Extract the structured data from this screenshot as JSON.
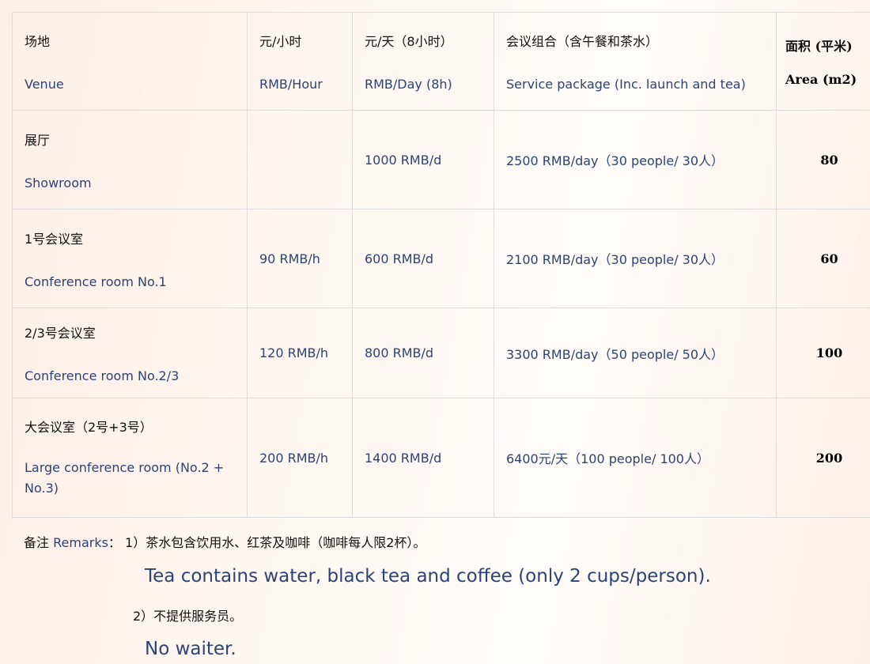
{
  "header": {
    "venue": {
      "zh": "场地",
      "en": "Venue"
    },
    "hour": {
      "zh": "元/小时",
      "en": "RMB/Hour"
    },
    "day": {
      "zh": "元/天（8小时）",
      "en": "RMB/Day (8h)"
    },
    "package": {
      "zh": "会议组合（含午餐和茶水）",
      "en": "Service package (Inc. launch and tea)"
    },
    "area": {
      "zh": "面积 (平米)",
      "en": "Area (m2)"
    }
  },
  "rows": [
    {
      "zh": "展厅",
      "en": "Showroom",
      "hour": "",
      "day": "1000 RMB/d",
      "package": "2500 RMB/day（30 people/ 30人）",
      "area": "80"
    },
    {
      "zh": "1号会议室",
      "en": "Conference room No.1",
      "hour": "90 RMB/h",
      "day": "600 RMB/d",
      "package": "2100 RMB/day（30 people/ 30人）",
      "area": "60"
    },
    {
      "zh": "2/3号会议室",
      "en": "Conference room No.2/3",
      "hour": "120 RMB/h",
      "day": "800 RMB/d",
      "package": "3300 RMB/day（50 people/ 50人）",
      "area": "100"
    },
    {
      "zh": "大会议室（2号+3号）",
      "en": "Large conference room (No.2 + No.3)",
      "hour": "200 RMB/h",
      "day": "1400 RMB/d",
      "package": "6400元/天（100 people/ 100人）",
      "area": "200"
    }
  ],
  "remarks": {
    "label_zh": "备注",
    "label_en": "Remarks",
    "colon": "：",
    "item1_zh": "1）茶水包含饮用水、红茶及咖啡（咖啡每人限2杯）。",
    "item1_en": "Tea contains water, black tea and coffee (only 2 cups/person).",
    "item2_zh": "2）不提供服务员。",
    "item2_en": "No waiter."
  }
}
